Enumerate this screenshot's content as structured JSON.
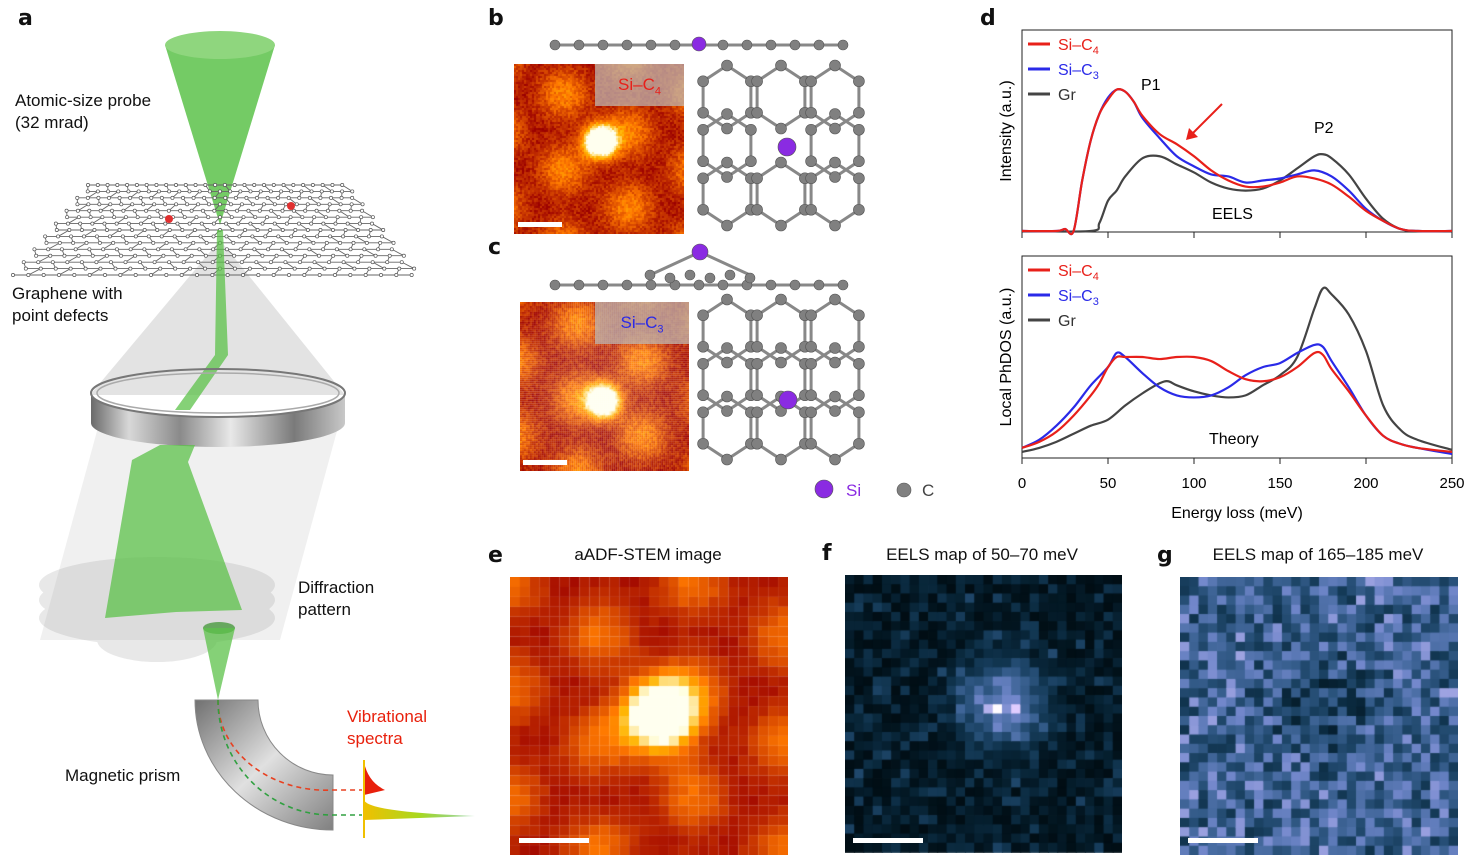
{
  "panel_a": {
    "label": "a",
    "probe_label_line1": "Atomic-size probe",
    "probe_label_line2": "(32 mrad)",
    "graphene_label_line1": "Graphene with",
    "graphene_label_line2": "point defects",
    "diffraction_label_line1": "Diffraction",
    "diffraction_label_line2": "pattern",
    "prism_label": "Magnetic prism",
    "spectra_label_line1": "Vibrational",
    "spectra_label_line2": "spectra",
    "colors": {
      "beam": "#5cc24a",
      "defect": "#e03030",
      "spectra": "#e8200c"
    }
  },
  "panel_b": {
    "label": "b",
    "tag": {
      "base": "Si–C",
      "sub": "4"
    },
    "tag_color": "#e8201a"
  },
  "panel_c": {
    "label": "c",
    "tag": {
      "base": "Si–C",
      "sub": "3"
    },
    "tag_color": "#2a2ae8"
  },
  "atom_legend": {
    "si": "Si",
    "c": "C",
    "si_color": "#8a2be2",
    "c_color": "#808080"
  },
  "panel_e": {
    "label": "e",
    "title": "aADF-STEM image"
  },
  "panel_f": {
    "label": "f",
    "title": "EELS map of 50–70 meV"
  },
  "panel_g": {
    "label": "g",
    "title": "EELS map of 165–185 meV"
  },
  "chart_data": {
    "label": "d",
    "type": "line",
    "xlabel": "Energy loss (meV)",
    "xlim": [
      0,
      250
    ],
    "xticks": [
      "0",
      "50",
      "100",
      "150",
      "200",
      "250"
    ],
    "panels": [
      {
        "ylabel": "Intensity (a.u.)",
        "annotation": "EELS",
        "peak_labels": [
          "P1",
          "P2"
        ],
        "arrow": "red arrow near 95 meV",
        "ylim": [
          0,
          1
        ],
        "legend": [
          {
            "base": "Si–C",
            "sub": "4",
            "color": "#e8201a"
          },
          {
            "base": "Si–C",
            "sub": "3",
            "color": "#2a2ae8"
          },
          {
            "base": "Gr",
            "sub": "",
            "color": "#444444"
          }
        ],
        "series": [
          {
            "name": "Si–C4",
            "color": "#e8201a",
            "x": [
              0,
              20,
              25,
              30,
              35,
              40,
              45,
              50,
              55,
              60,
              65,
              70,
              80,
              90,
              100,
              110,
              120,
              130,
              140,
              150,
              160,
              170,
              180,
              190,
              200,
              210,
              220,
              230,
              250
            ],
            "y": [
              0,
              0,
              0.01,
              0,
              0.25,
              0.45,
              0.58,
              0.65,
              0.7,
              0.69,
              0.64,
              0.57,
              0.48,
              0.43,
              0.37,
              0.3,
              0.25,
              0.22,
              0.22,
              0.24,
              0.27,
              0.26,
              0.23,
              0.17,
              0.1,
              0.05,
              0.01,
              0,
              0
            ]
          },
          {
            "name": "Si–C3",
            "color": "#2a2ae8",
            "x": [
              0,
              20,
              25,
              30,
              35,
              40,
              45,
              50,
              55,
              60,
              65,
              70,
              80,
              90,
              100,
              110,
              120,
              130,
              140,
              150,
              160,
              170,
              180,
              190,
              200,
              210,
              220,
              230,
              250
            ],
            "y": [
              0,
              0,
              0.01,
              0,
              0.25,
              0.45,
              0.58,
              0.66,
              0.7,
              0.69,
              0.64,
              0.56,
              0.46,
              0.37,
              0.32,
              0.28,
              0.27,
              0.24,
              0.25,
              0.26,
              0.28,
              0.3,
              0.27,
              0.2,
              0.11,
              0.05,
              0.01,
              0,
              0
            ]
          },
          {
            "name": "Gr",
            "color": "#444444",
            "x": [
              0,
              40,
              45,
              50,
              55,
              60,
              70,
              80,
              90,
              100,
              110,
              120,
              130,
              140,
              150,
              160,
              170,
              175,
              180,
              190,
              200,
              210,
              220,
              230,
              250
            ],
            "y": [
              0,
              0,
              0.04,
              0.15,
              0.2,
              0.27,
              0.36,
              0.37,
              0.33,
              0.29,
              0.24,
              0.21,
              0.2,
              0.21,
              0.25,
              0.31,
              0.37,
              0.38,
              0.36,
              0.28,
              0.16,
              0.06,
              0.01,
              0,
              0
            ]
          }
        ]
      },
      {
        "ylabel": "Local PhDOS (a.u.)",
        "annotation": "Theory",
        "ylim": [
          0,
          1
        ],
        "legend": [
          {
            "base": "Si–C",
            "sub": "4",
            "color": "#e8201a"
          },
          {
            "base": "Si–C",
            "sub": "3",
            "color": "#2a2ae8"
          },
          {
            "base": "Gr",
            "sub": "",
            "color": "#444444"
          }
        ],
        "series": [
          {
            "name": "Si–C4",
            "color": "#e8201a",
            "x": [
              0,
              10,
              20,
              30,
              40,
              45,
              50,
              55,
              60,
              70,
              80,
              90,
              100,
              110,
              120,
              130,
              140,
              150,
              160,
              170,
              175,
              180,
              190,
              200,
              210,
              220,
              230,
              250
            ],
            "y": [
              0.04,
              0.07,
              0.12,
              0.2,
              0.3,
              0.36,
              0.44,
              0.49,
              0.49,
              0.49,
              0.48,
              0.49,
              0.49,
              0.47,
              0.42,
              0.38,
              0.37,
              0.39,
              0.44,
              0.51,
              0.5,
              0.43,
              0.32,
              0.2,
              0.1,
              0.06,
              0.04,
              0.02
            ]
          },
          {
            "name": "Si–C3",
            "color": "#2a2ae8",
            "x": [
              0,
              10,
              20,
              30,
              40,
              50,
              55,
              60,
              70,
              80,
              90,
              100,
              110,
              120,
              130,
              140,
              150,
              160,
              170,
              175,
              180,
              190,
              200,
              210,
              220,
              230,
              250
            ],
            "y": [
              0.04,
              0.08,
              0.15,
              0.24,
              0.35,
              0.44,
              0.51,
              0.49,
              0.41,
              0.34,
              0.3,
              0.29,
              0.3,
              0.34,
              0.4,
              0.44,
              0.46,
              0.51,
              0.55,
              0.54,
              0.47,
              0.34,
              0.2,
              0.1,
              0.06,
              0.04,
              0.01
            ]
          },
          {
            "name": "Gr",
            "color": "#444444",
            "x": [
              0,
              10,
              20,
              30,
              40,
              50,
              60,
              70,
              80,
              85,
              90,
              100,
              110,
              120,
              130,
              140,
              150,
              160,
              170,
              175,
              180,
              190,
              200,
              210,
              220,
              230,
              250
            ],
            "y": [
              0.02,
              0.04,
              0.07,
              0.11,
              0.15,
              0.18,
              0.25,
              0.31,
              0.36,
              0.37,
              0.35,
              0.32,
              0.3,
              0.29,
              0.3,
              0.35,
              0.4,
              0.49,
              0.73,
              0.83,
              0.8,
              0.7,
              0.52,
              0.25,
              0.13,
              0.08,
              0.03
            ]
          }
        ]
      }
    ]
  }
}
